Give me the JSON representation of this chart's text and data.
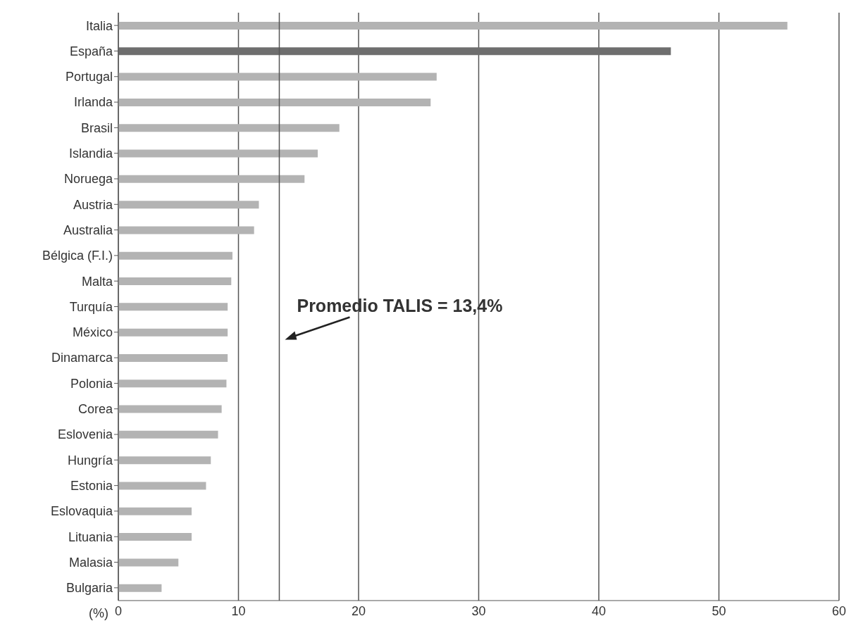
{
  "chart_data": {
    "type": "bar",
    "orientation": "horizontal",
    "xlabel": "(%)",
    "categories": [
      "Italia",
      "España",
      "Portugal",
      "Irlanda",
      "Brasil",
      "Islandia",
      "Noruega",
      "Austria",
      "Australia",
      "Bélgica (F.I.)",
      "Malta",
      "Turquía",
      "México",
      "Dinamarca",
      "Polonia",
      "Corea",
      "Eslovenia",
      "Hungría",
      "Estonia",
      "Eslovaquia",
      "Lituania",
      "Malasia",
      "Bulgaria"
    ],
    "values": [
      55.7,
      46.0,
      26.5,
      26.0,
      18.4,
      16.6,
      15.5,
      11.7,
      11.3,
      9.5,
      9.4,
      9.1,
      9.1,
      9.1,
      9.0,
      8.6,
      8.3,
      7.7,
      7.3,
      6.1,
      6.1,
      5.0,
      3.6
    ],
    "colors": [
      "#b3b3b3",
      "#6e6e6e",
      "#b3b3b3",
      "#b3b3b3",
      "#b3b3b3",
      "#b3b3b3",
      "#b3b3b3",
      "#b3b3b3",
      "#b3b3b3",
      "#b3b3b3",
      "#b3b3b3",
      "#b3b3b3",
      "#b3b3b3",
      "#b3b3b3",
      "#b3b3b3",
      "#b3b3b3",
      "#b3b3b3",
      "#b3b3b3",
      "#b3b3b3",
      "#b3b3b3",
      "#b3b3b3",
      "#b3b3b3",
      "#b3b3b3"
    ],
    "xlim": [
      0,
      60
    ],
    "xticks": [
      0,
      10,
      20,
      30,
      40,
      50,
      60
    ],
    "grid": "x",
    "ref_lines": [
      {
        "axis": "x",
        "value": 13.4,
        "label": "Promedio TALIS = 13,4%",
        "color": "#555555"
      }
    ]
  }
}
